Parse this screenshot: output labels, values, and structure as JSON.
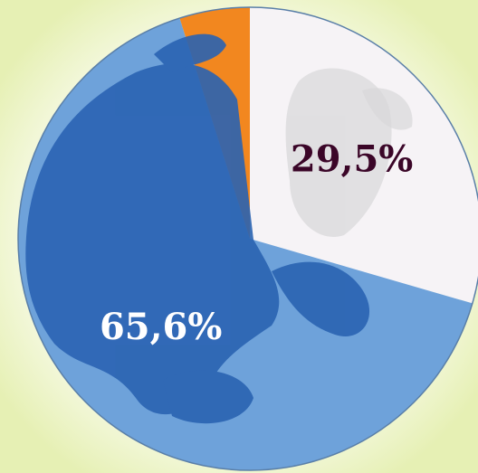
{
  "chart_data": {
    "type": "pie",
    "values": [
      29.5,
      65.6,
      4.9
    ],
    "value_labels": [
      "29,5%",
      "65,6%",
      null
    ],
    "colors": [
      "#f6f3f6",
      "#6ea2da",
      "#f2871f"
    ],
    "label_colors": [
      "#3b0628",
      "#ffffff",
      null
    ]
  }
}
